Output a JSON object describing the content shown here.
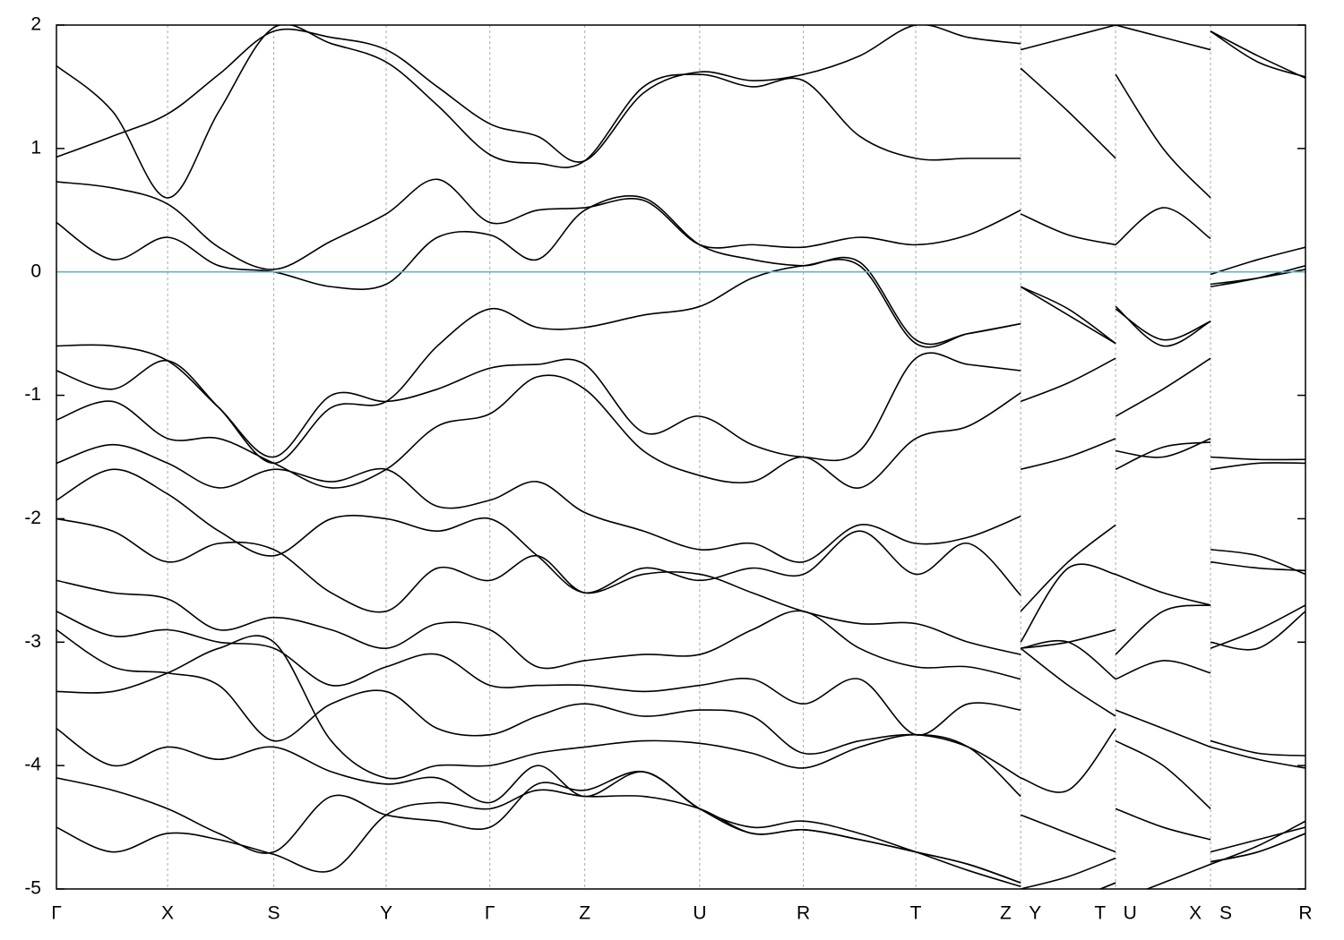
{
  "chart_data": {
    "type": "line",
    "color": "#000000",
    "xlim": [
      0,
      1
    ],
    "ylim": [
      -5,
      2
    ],
    "yticks": [
      -5,
      -4,
      -3,
      -2,
      -1,
      0,
      1,
      2
    ],
    "xticks": [
      {
        "value": 0,
        "label": "Γ"
      },
      {
        "value": 0.089,
        "label": "X"
      },
      {
        "value": 0.174,
        "label": "S"
      },
      {
        "value": 0.264,
        "label": "Y"
      },
      {
        "value": 0.347,
        "label": "Γ"
      },
      {
        "value": 0.423,
        "label": "Z"
      },
      {
        "value": 0.515,
        "label": "U"
      },
      {
        "value": 0.598,
        "label": "R"
      },
      {
        "value": 0.688,
        "label": "T"
      },
      {
        "value": 0.772,
        "label": "Z Y"
      },
      {
        "value": 0.848,
        "label": "T U"
      },
      {
        "value": 0.924,
        "label": "X S"
      },
      {
        "value": 1,
        "label": "R"
      }
    ],
    "grid": true,
    "hlines": [
      {
        "value": 0,
        "color": "#5bb3c8"
      }
    ],
    "x": [
      0,
      0.045,
      0.089,
      0.13,
      0.174,
      0.22,
      0.264,
      0.305,
      0.347,
      0.385,
      0.423,
      0.47,
      0.515,
      0.557,
      0.598,
      0.643,
      0.688,
      0.73,
      0.772,
      0.772,
      0.772,
      0.81,
      0.848,
      0.848,
      0.848,
      0.886,
      0.924,
      0.924,
      0.924,
      0.962,
      1
    ],
    "series": [
      {
        "values": [
          1.67,
          1.3,
          0.6,
          1.3,
          1.98,
          1.85,
          1.7,
          1.35,
          0.95,
          0.88,
          0.9,
          1.5,
          1.6,
          1.5,
          1.55,
          1.1,
          0.92,
          0.92,
          0.92,
          null,
          1.65,
          1.3,
          0.92,
          null,
          1.6,
          1.0,
          0.6,
          null,
          1.95,
          1.75,
          1.57
        ]
      },
      {
        "values": [
          0.93,
          1.1,
          1.28,
          1.6,
          1.95,
          1.9,
          1.8,
          1.5,
          1.2,
          1.1,
          0.9,
          1.45,
          1.62,
          1.55,
          1.6,
          1.75,
          2.0,
          1.9,
          1.85,
          null,
          1.8,
          1.9,
          2.0,
          null,
          2.0,
          1.9,
          1.8,
          null,
          1.95,
          1.7,
          1.58
        ]
      },
      {
        "values": [
          0.73,
          0.68,
          0.55,
          0.2,
          0.02,
          0.25,
          0.47,
          0.75,
          0.4,
          0.5,
          0.52,
          0.58,
          0.22,
          0.22,
          0.2,
          0.28,
          0.22,
          0.3,
          0.5,
          null,
          0.47,
          0.3,
          0.22,
          null,
          0.22,
          0.52,
          0.27,
          null,
          -0.02,
          0.1,
          0.2
        ]
      },
      {
        "values": [
          0.4,
          0.1,
          0.28,
          0.05,
          0,
          -0.12,
          -0.1,
          0.28,
          0.3,
          0.1,
          0.5,
          0.6,
          0.22,
          0.1,
          0.05,
          0.08,
          -0.55,
          -0.5,
          -0.42,
          null,
          -0.12,
          -0.3,
          -0.58,
          null,
          -0.28,
          -0.6,
          -0.4,
          null,
          -0.12,
          -0.05,
          0.05
        ]
      },
      {
        "values": [
          -0.8,
          -0.95,
          -0.72,
          -1.1,
          -1.55,
          -1.1,
          -1.05,
          -0.6,
          -0.3,
          -0.45,
          -0.45,
          -0.35,
          -0.28,
          -0.05,
          0.05,
          0.05,
          -0.58,
          -0.5,
          -0.42,
          null,
          -0.12,
          -0.35,
          -0.58,
          null,
          -0.3,
          -0.55,
          -0.4,
          null,
          -0.1,
          -0.05,
          0.02
        ]
      },
      {
        "values": [
          -0.6,
          -0.6,
          -0.72,
          -1.1,
          -1.5,
          -1.0,
          -1.05,
          -0.95,
          -0.78,
          -0.75,
          -0.75,
          -1.3,
          -1.17,
          -1.4,
          -1.5,
          -1.45,
          -0.7,
          -0.75,
          -0.8,
          null,
          -1.05,
          -0.9,
          -0.7,
          null,
          -1.17,
          -0.95,
          -0.7,
          null,
          -1.5,
          -1.52,
          -1.52
        ]
      },
      {
        "values": [
          -1.2,
          -1.05,
          -1.35,
          -1.35,
          -1.55,
          -1.75,
          -1.6,
          -1.25,
          -1.15,
          -0.85,
          -0.95,
          -1.45,
          -1.65,
          -1.7,
          -1.5,
          -1.75,
          -1.35,
          -1.25,
          -0.98,
          null,
          -1.6,
          -1.5,
          -1.35,
          null,
          -1.6,
          -1.42,
          -1.38,
          null,
          -1.6,
          -1.55,
          -1.55
        ]
      },
      {
        "values": [
          -1.55,
          -1.4,
          -1.55,
          -1.75,
          -1.6,
          -1.7,
          -1.6,
          -1.9,
          -1.85,
          -1.7,
          -1.95,
          -2.1,
          -2.25,
          -2.2,
          -2.35,
          -2.05,
          -2.2,
          -2.15,
          -1.98,
          null,
          -2.75,
          -2.35,
          -2.05,
          null,
          -1.45,
          -1.5,
          -1.35,
          null,
          -2.25,
          -2.3,
          -2.45
        ]
      },
      {
        "values": [
          -1.85,
          -1.6,
          -1.8,
          -2.1,
          -2.3,
          -2.0,
          -2.0,
          -2.1,
          -2.0,
          -2.3,
          -2.6,
          -2.4,
          -2.5,
          -2.4,
          -2.45,
          -2.1,
          -2.45,
          -2.2,
          -2.62,
          null,
          -3.0,
          -2.4,
          -2.45,
          null,
          -2.45,
          -2.6,
          -2.7,
          null,
          -2.35,
          -2.4,
          -2.42
        ]
      },
      {
        "values": [
          -2.0,
          -2.1,
          -2.35,
          -2.2,
          -2.25,
          -2.6,
          -2.75,
          -2.4,
          -2.5,
          -2.3,
          -2.6,
          -2.45,
          -2.45,
          -2.6,
          -2.75,
          -2.85,
          -2.85,
          -3.0,
          -3.1,
          null,
          -3.05,
          -3.0,
          -2.9,
          null,
          -3.1,
          -2.75,
          -2.7,
          null,
          -3.05,
          -2.9,
          -2.7
        ]
      },
      {
        "values": [
          -2.5,
          -2.6,
          -2.65,
          -2.9,
          -2.8,
          -2.9,
          -3.05,
          -2.85,
          -2.9,
          -3.2,
          -3.15,
          -3.1,
          -3.1,
          -2.9,
          -2.75,
          -3.05,
          -3.2,
          -3.2,
          -3.3,
          null,
          -3.05,
          -3.0,
          -3.3,
          null,
          -3.3,
          -3.15,
          -3.25,
          null,
          -3.0,
          -3.05,
          -2.75
        ]
      },
      {
        "values": [
          -2.75,
          -2.95,
          -2.9,
          -3.0,
          -3.05,
          -3.35,
          -3.2,
          -3.1,
          -3.35,
          -3.35,
          -3.35,
          -3.4,
          -3.35,
          -3.3,
          -3.5,
          -3.3,
          -3.75,
          -3.5,
          -3.55,
          null,
          -3.05,
          -3.35,
          -3.6,
          null,
          -3.55,
          -3.7,
          -3.85,
          null,
          -3.8,
          -3.9,
          -3.92
        ]
      },
      {
        "values": [
          -2.9,
          -3.2,
          -3.25,
          -3.35,
          -3.8,
          -3.5,
          -3.4,
          -3.7,
          -3.75,
          -3.6,
          -3.5,
          -3.6,
          -3.55,
          -3.6,
          -3.9,
          -3.8,
          -3.75,
          -3.85,
          -4.1,
          null,
          -4.1,
          -4.2,
          -3.7,
          null,
          -3.8,
          -4.0,
          -4.35,
          null,
          -3.85,
          -3.95,
          -4.02
        ]
      },
      {
        "values": [
          -3.4,
          -3.4,
          -3.25,
          -3.05,
          -3.0,
          -3.8,
          -4.1,
          -4.0,
          -4.0,
          -3.9,
          -3.85,
          -3.8,
          -3.82,
          -3.9,
          -4.02,
          -3.85,
          -3.75,
          -3.85,
          -4.25,
          null,
          -4.4,
          -4.55,
          -4.7,
          null,
          -4.35,
          -4.5,
          -4.6,
          null,
          -4.7,
          -4.6,
          -4.5
        ]
      },
      {
        "values": [
          -3.7,
          -4.0,
          -3.85,
          -3.95,
          -3.85,
          -4.05,
          -4.15,
          -4.1,
          -4.3,
          -4.0,
          -4.25,
          -4.05,
          -4.35,
          -4.5,
          -4.45,
          -4.55,
          -4.7,
          -4.85,
          -4.98,
          null,
          -5.0,
          -4.9,
          -4.75,
          null,
          -5.1,
          -4.95,
          -4.8,
          null,
          -4.8,
          -4.65,
          -4.45
        ]
      },
      {
        "values": [
          -4.1,
          -4.2,
          -4.35,
          -4.55,
          -4.7,
          -4.25,
          -4.4,
          -4.45,
          -4.5,
          -4.15,
          -4.2,
          -4.05,
          -4.35,
          -4.55,
          -4.52,
          -4.6,
          -4.7,
          -4.8,
          -4.95,
          null,
          -5.2,
          -5.1,
          -4.95,
          null,
          -5.2,
          -5.1,
          -5.0,
          null,
          -4.78,
          -4.7,
          -4.55
        ]
      },
      {
        "values": [
          -4.5,
          -4.7,
          -4.55,
          -4.6,
          -4.72,
          -4.85,
          -4.4,
          -4.3,
          -4.35,
          -4.2,
          -4.25,
          -4.25,
          -4.35,
          -4.55,
          -4.52,
          -4.6,
          -4.7,
          -4.8,
          -4.95,
          null,
          -5.2,
          -5.1,
          -4.95,
          null,
          -5.2,
          -5.1,
          -5.0,
          null,
          -4.78,
          -4.7,
          -4.55
        ]
      }
    ]
  }
}
